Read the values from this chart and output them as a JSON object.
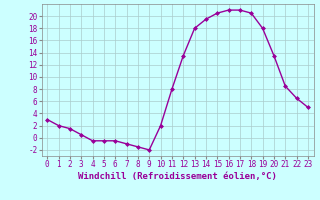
{
  "x": [
    0,
    1,
    2,
    3,
    4,
    5,
    6,
    7,
    8,
    9,
    10,
    11,
    12,
    13,
    14,
    15,
    16,
    17,
    18,
    19,
    20,
    21,
    22,
    23
  ],
  "y": [
    3,
    2,
    1.5,
    0.5,
    -0.5,
    -0.5,
    -0.5,
    -1,
    -1.5,
    -2,
    2,
    8,
    13.5,
    18,
    19.5,
    20.5,
    21,
    21,
    20.5,
    18,
    13.5,
    8.5,
    6.5,
    5
  ],
  "line_color": "#990099",
  "marker": "D",
  "marker_size": 2,
  "bg_color": "#ccffff",
  "grid_color": "#aacccc",
  "xlabel": "Windchill (Refroidissement éolien,°C)",
  "ylim": [
    -3,
    22
  ],
  "xlim": [
    -0.5,
    23.5
  ],
  "yticks": [
    -2,
    0,
    2,
    4,
    6,
    8,
    10,
    12,
    14,
    16,
    18,
    20
  ],
  "xticks": [
    0,
    1,
    2,
    3,
    4,
    5,
    6,
    7,
    8,
    9,
    10,
    11,
    12,
    13,
    14,
    15,
    16,
    17,
    18,
    19,
    20,
    21,
    22,
    23
  ],
  "tick_label_fontsize": 5.5,
  "xlabel_fontsize": 6.5,
  "line_width": 1.0
}
